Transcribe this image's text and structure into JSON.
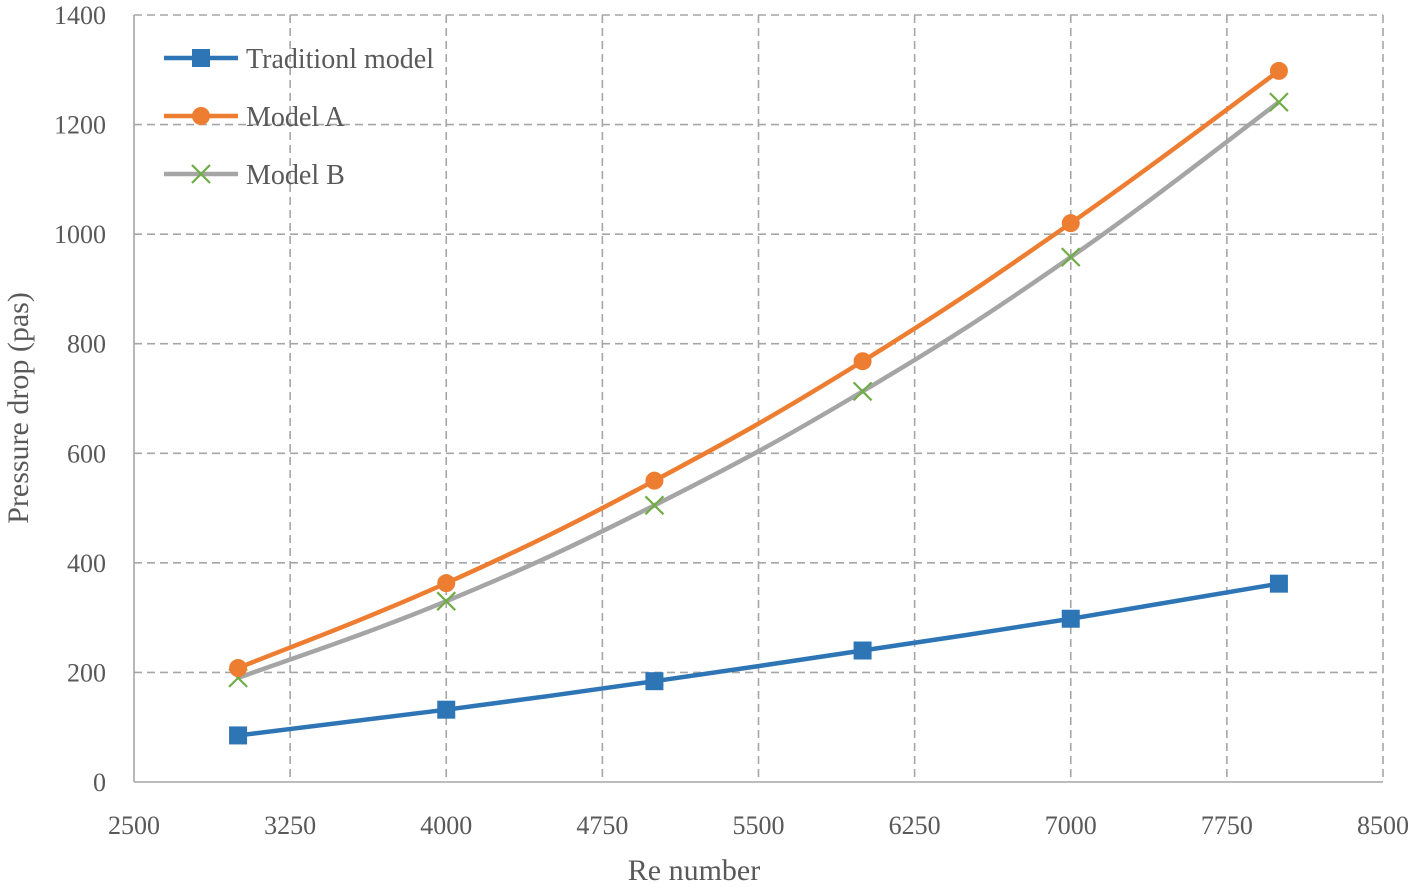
{
  "chart_data": {
    "type": "line",
    "title": "",
    "xlabel": "Re number",
    "ylabel": "Pressure drop (pas)",
    "xlim": [
      2500,
      8500
    ],
    "ylim": [
      0,
      1400
    ],
    "x_ticks": [
      "2500",
      "3250",
      "4000",
      "4750",
      "5500",
      "6250",
      "7000",
      "7750",
      "8500"
    ],
    "y_ticks": [
      "0",
      "200",
      "400",
      "600",
      "800",
      "1000",
      "1200",
      "1400"
    ],
    "x": [
      3000,
      4000,
      5000,
      6000,
      7000,
      8000
    ],
    "grid": true,
    "legend_position": "top-left",
    "series": [
      {
        "name": "Traditionl model",
        "color": "#2e75b6",
        "marker": "square",
        "values": [
          85,
          132,
          184,
          240,
          298,
          362
        ]
      },
      {
        "name": "Model A",
        "color": "#ed7d31",
        "marker": "circle",
        "values": [
          208,
          363,
          550,
          768,
          1020,
          1298
        ]
      },
      {
        "name": "Model B",
        "color": "#a5a5a5",
        "marker_color": "#70ad47",
        "marker": "x",
        "values": [
          190,
          330,
          505,
          713,
          958,
          1241
        ]
      }
    ]
  }
}
